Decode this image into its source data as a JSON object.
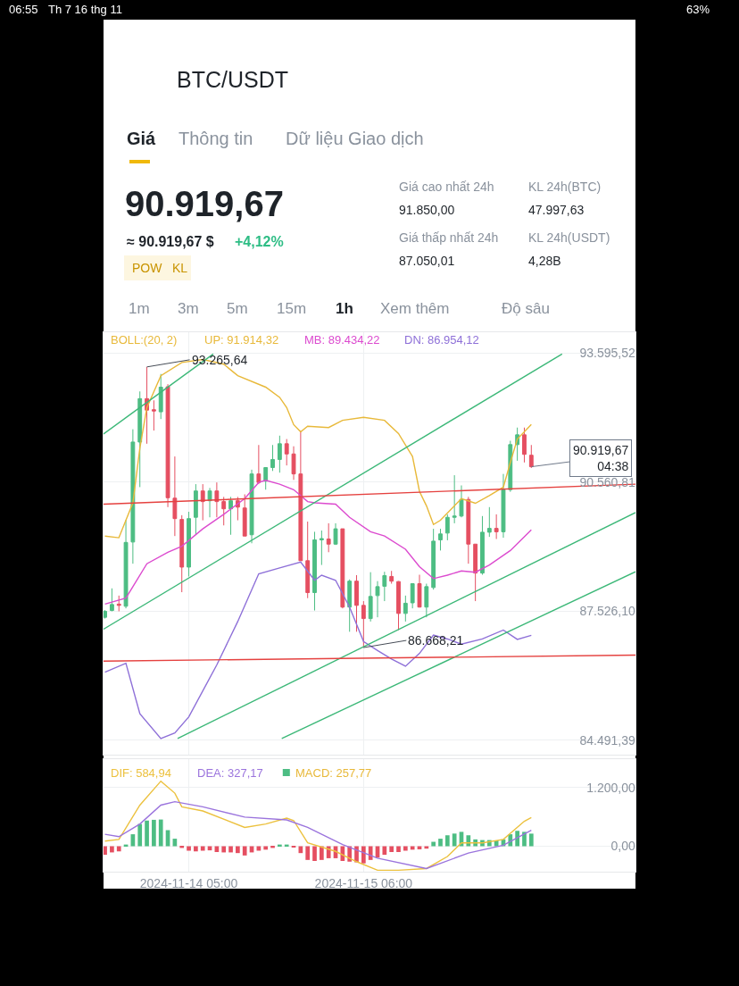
{
  "chart_data": [
    {
      "type": "candlestick",
      "title": "BTC/USDT",
      "legend_title": "BOLL:(20, 2)",
      "annotations": [
        "Giá",
        "Thông tin",
        "Dữ liệu Giao dịch",
        "90.919,67",
        "≈ 90.919,67 $",
        "+4,12%",
        "POW",
        "KL",
        "Giá cao nhất 24h",
        "91.850,00",
        "Giá thấp nhất 24h",
        "87.050,01",
        "KL 24h(BTC)",
        "47.997,63",
        "KL 24h(USDT)",
        "4,28B",
        "1m",
        "3m",
        "5m",
        "15m",
        "1h",
        "Xem thêm",
        "Độ sâu",
        "06:55",
        "Th 7 16 thg 11",
        "63%",
        {
          "text": "93.265,64",
          "x": "2024-11-13T23:00",
          "y": 93265.64
        },
        {
          "text": "86.668,21",
          "x": "2024-11-15T06:00",
          "y": 86668.21
        },
        {
          "text": "90.919,67\n04:38",
          "x": "2024-11-16T06:00",
          "y": 90919.67
        }
      ],
      "x": [
        "2024-11-13T17:00",
        "2024-11-13T18:00",
        "2024-11-13T19:00",
        "2024-11-13T20:00",
        "2024-11-13T21:00",
        "2024-11-13T22:00",
        "2024-11-13T23:00",
        "2024-11-14T00:00",
        "2024-11-14T01:00",
        "2024-11-14T02:00",
        "2024-11-14T03:00",
        "2024-11-14T04:00",
        "2024-11-14T05:00",
        "2024-11-14T06:00",
        "2024-11-14T07:00",
        "2024-11-14T08:00",
        "2024-11-14T09:00",
        "2024-11-14T10:00",
        "2024-11-14T11:00",
        "2024-11-14T12:00",
        "2024-11-14T13:00",
        "2024-11-14T14:00",
        "2024-11-14T15:00",
        "2024-11-14T16:00",
        "2024-11-14T17:00",
        "2024-11-14T18:00",
        "2024-11-14T19:00",
        "2024-11-14T20:00",
        "2024-11-14T21:00",
        "2024-11-14T22:00",
        "2024-11-14T23:00",
        "2024-11-15T00:00",
        "2024-11-15T01:00",
        "2024-11-15T02:00",
        "2024-11-15T03:00",
        "2024-11-15T04:00",
        "2024-11-15T05:00",
        "2024-11-15T06:00",
        "2024-11-15T07:00",
        "2024-11-15T08:00",
        "2024-11-15T09:00",
        "2024-11-15T10:00",
        "2024-11-15T11:00",
        "2024-11-15T12:00",
        "2024-11-15T13:00",
        "2024-11-15T14:00",
        "2024-11-15T15:00",
        "2024-11-15T16:00",
        "2024-11-15T17:00",
        "2024-11-15T18:00",
        "2024-11-15T19:00",
        "2024-11-15T20:00",
        "2024-11-15T21:00",
        "2024-11-15T22:00",
        "2024-11-15T23:00",
        "2024-11-16T00:00",
        "2024-11-16T01:00",
        "2024-11-16T02:00",
        "2024-11-16T03:00",
        "2024-11-16T04:00",
        "2024-11-16T05:00",
        "2024-11-16T06:00"
      ],
      "ohlc": [
        [
          87380,
          87550,
          87350,
          87520
        ],
        [
          87540,
          88060,
          87520,
          87680
        ],
        [
          87690,
          87890,
          87520,
          87660
        ],
        [
          87640,
          89670,
          87590,
          89140
        ],
        [
          89150,
          91800,
          88640,
          91500
        ],
        [
          91500,
          92690,
          90440,
          92520
        ],
        [
          92520,
          93265.64,
          91460,
          92250
        ],
        [
          92260,
          92480,
          91770,
          92230
        ],
        [
          92210,
          93100,
          92040,
          92790
        ],
        [
          92800,
          92860,
          89970,
          90190
        ],
        [
          90180,
          91160,
          89290,
          89700
        ],
        [
          89680,
          89780,
          87970,
          88560
        ],
        [
          88560,
          89860,
          88340,
          89700
        ],
        [
          89730,
          90510,
          89320,
          90350
        ],
        [
          90350,
          90510,
          89660,
          90100
        ],
        [
          90120,
          90420,
          89730,
          90350
        ],
        [
          90350,
          90550,
          89730,
          90100
        ],
        [
          90100,
          90210,
          89540,
          89930
        ],
        [
          89930,
          90210,
          89320,
          90120
        ],
        [
          90120,
          90210,
          89660,
          89970
        ],
        [
          89950,
          90270,
          89290,
          89290
        ],
        [
          89320,
          90850,
          89120,
          90750
        ],
        [
          90750,
          91430,
          90510,
          90550
        ],
        [
          90580,
          90900,
          90380,
          90900
        ],
        [
          90900,
          91430,
          90820,
          91090
        ],
        [
          91090,
          91650,
          90780,
          91460
        ],
        [
          91460,
          91570,
          90950,
          91220
        ],
        [
          91220,
          91400,
          90610,
          90750
        ],
        [
          90750,
          91770,
          88710,
          88710
        ],
        [
          88710,
          89630,
          87830,
          87960
        ],
        [
          87960,
          89390,
          87540,
          89200
        ],
        [
          89200,
          89420,
          88610,
          89230
        ],
        [
          89220,
          89590,
          88910,
          89100
        ],
        [
          89100,
          89590,
          89080,
          89460
        ],
        [
          89460,
          89460,
          87590,
          87620
        ],
        [
          87620,
          88270,
          87040,
          88230
        ],
        [
          88230,
          88370,
          87040,
          87660
        ],
        [
          87660,
          87760,
          86668.21,
          87350
        ],
        [
          87350,
          88440,
          87280,
          87870
        ],
        [
          87890,
          88230,
          87380,
          88100
        ],
        [
          88110,
          88450,
          87760,
          88360
        ],
        [
          88340,
          88470,
          88170,
          88230
        ],
        [
          88220,
          88230,
          87080,
          87470
        ],
        [
          87470,
          87890,
          87280,
          87710
        ],
        [
          87720,
          88170,
          87590,
          88170
        ],
        [
          88170,
          88380,
          87610,
          87620
        ],
        [
          87620,
          88170,
          87380,
          88100
        ],
        [
          88080,
          89460,
          88030,
          89170
        ],
        [
          89200,
          89460,
          88950,
          89340
        ],
        [
          89360,
          89800,
          89190,
          89730
        ],
        [
          89730,
          90720,
          89590,
          89760
        ],
        [
          89760,
          90480,
          89730,
          90150
        ],
        [
          90150,
          90210,
          88640,
          89100
        ],
        [
          89100,
          89100,
          87760,
          88420
        ],
        [
          88420,
          89760,
          88380,
          89380
        ],
        [
          89380,
          89970,
          89270,
          89470
        ],
        [
          89470,
          89800,
          89220,
          89390
        ],
        [
          89390,
          90750,
          89250,
          90380
        ],
        [
          90380,
          91530,
          90330,
          91440
        ],
        [
          91440,
          91840,
          91060,
          91670
        ],
        [
          91670,
          91840,
          91020,
          91210
        ],
        [
          91190,
          91430,
          90890,
          90919.67
        ]
      ],
      "colors": [
        "#4dbd83",
        "#4dbd83",
        "#e54f61",
        "#4dbd83",
        "#4dbd83",
        "#4dbd83",
        "#e54f61",
        "#e54f61",
        "#4dbd83",
        "#e54f61",
        "#e54f61",
        "#e54f61",
        "#4dbd83",
        "#4dbd83",
        "#e54f61",
        "#4dbd83",
        "#e54f61",
        "#e54f61",
        "#4dbd83",
        "#e54f61",
        "#e54f61",
        "#4dbd83",
        "#e54f61",
        "#4dbd83",
        "#4dbd83",
        "#4dbd83",
        "#e54f61",
        "#e54f61",
        "#e54f61",
        "#e54f61",
        "#4dbd83",
        "#4dbd83",
        "#e54f61",
        "#4dbd83",
        "#e54f61",
        "#4dbd83",
        "#e54f61",
        "#e54f61",
        "#4dbd83",
        "#4dbd83",
        "#4dbd83",
        "#e54f61",
        "#e54f61",
        "#4dbd83",
        "#4dbd83",
        "#e54f61",
        "#4dbd83",
        "#4dbd83",
        "#4dbd83",
        "#4dbd83",
        "#4dbd83",
        "#4dbd83",
        "#e54f61",
        "#e54f61",
        "#4dbd83",
        "#4dbd83",
        "#e54f61",
        "#4dbd83",
        "#4dbd83",
        "#4dbd83",
        "#e54f61",
        "#e54f61"
      ],
      "series": [
        {
          "name": "UP: 91.914,32",
          "type": "line",
          "color": "#e8b93a",
          "x": [
            "2024-11-13T17:00",
            "2024-11-13T19:00",
            "2024-11-13T21:00",
            "2024-11-13T22:00",
            "2024-11-13T23:00",
            "2024-11-14T01:00",
            "2024-11-14T04:00",
            "2024-11-14T07:00",
            "2024-11-14T10:00",
            "2024-11-14T12:00",
            "2024-11-14T16:00",
            "2024-11-14T18:00",
            "2024-11-14T19:00",
            "2024-11-14T20:00",
            "2024-11-14T21:00",
            "2024-11-14T22:00",
            "2024-11-15T01:00",
            "2024-11-15T03:00",
            "2024-11-15T06:00",
            "2024-11-15T09:00",
            "2024-11-15T11:00",
            "2024-11-15T13:00",
            "2024-11-15T14:00",
            "2024-11-15T15:00",
            "2024-11-15T16:00",
            "2024-11-15T17:00",
            "2024-11-15T20:00",
            "2024-11-15T22:00",
            "2024-11-16T00:00",
            "2024-11-16T02:00",
            "2024-11-16T03:00",
            "2024-11-16T04:00",
            "2024-11-16T05:00",
            "2024-11-16T06:00"
          ],
          "values": [
            89290,
            89250,
            90070,
            91360,
            92310,
            93060,
            93370,
            93440,
            93330,
            93060,
            92790,
            92550,
            92310,
            91910,
            91740,
            91870,
            91840,
            92010,
            92080,
            92010,
            91700,
            91160,
            90340,
            90000,
            89560,
            89660,
            90170,
            90060,
            90240,
            90440,
            91020,
            91570,
            91740,
            91914.32
          ]
        },
        {
          "name": "MB: 89.434,22",
          "type": "line",
          "color": "#dc4bcf",
          "x": [
            "2024-11-13T17:00",
            "2024-11-13T20:00",
            "2024-11-13T21:00",
            "2024-11-13T23:00",
            "2024-11-14T02:00",
            "2024-11-14T04:00",
            "2024-11-14T07:00",
            "2024-11-14T10:00",
            "2024-11-14T13:00",
            "2024-11-14T15:00",
            "2024-11-14T16:00",
            "2024-11-14T18:00",
            "2024-11-14T20:00",
            "2024-11-14T22:00",
            "2024-11-14T23:00",
            "2024-11-15T02:00",
            "2024-11-15T04:00",
            "2024-11-15T07:00",
            "2024-11-15T09:00",
            "2024-11-15T12:00",
            "2024-11-15T14:00",
            "2024-11-15T16:00",
            "2024-11-15T18:00",
            "2024-11-15T20:00",
            "2024-11-15T22:00",
            "2024-11-16T00:00",
            "2024-11-16T03:00",
            "2024-11-16T06:00"
          ],
          "values": [
            87690,
            87830,
            88100,
            88640,
            88910,
            89050,
            89460,
            89800,
            90170,
            90550,
            90600,
            90510,
            90380,
            90100,
            90070,
            90040,
            89730,
            89390,
            89290,
            88980,
            88570,
            88290,
            88370,
            88470,
            88440,
            88610,
            88950,
            89434.22
          ]
        },
        {
          "name": "DN: 86.954,12",
          "type": "line",
          "color": "#8e70d8",
          "x": [
            "2024-11-13T17:00",
            "2024-11-13T20:00",
            "2024-11-13T22:00",
            "2024-11-14T01:00",
            "2024-11-14T03:00",
            "2024-11-14T05:00",
            "2024-11-14T09:00",
            "2024-11-14T12:00",
            "2024-11-14T15:00",
            "2024-11-14T18:00",
            "2024-11-14T21:00",
            "2024-11-14T23:00",
            "2024-11-15T00:00",
            "2024-11-15T02:00",
            "2024-11-15T04:00",
            "2024-11-15T06:00",
            "2024-11-15T08:00",
            "2024-11-15T10:00",
            "2024-11-15T12:00",
            "2024-11-15T14:00",
            "2024-11-15T16:00",
            "2024-11-15T18:00",
            "2024-11-15T20:00",
            "2024-11-15T23:00",
            "2024-11-16T02:00",
            "2024-11-16T04:00",
            "2024-11-16T06:00"
          ],
          "values": [
            86090,
            86300,
            85110,
            84530,
            84660,
            85040,
            86260,
            87280,
            88400,
            88540,
            88680,
            88250,
            88370,
            88250,
            87620,
            86810,
            86600,
            86400,
            86230,
            86530,
            86960,
            86870,
            86750,
            86870,
            87080,
            86860,
            86954.12
          ]
        },
        {
          "type": "line",
          "color": "#3cb878",
          "x": [
            "2024-11-13T16:48",
            "2024-11-16T10:24"
          ],
          "values": [
            87100,
            93570
          ]
        },
        {
          "type": "line",
          "color": "#3cb878",
          "x": [
            "2024-11-13T16:48",
            "2024-11-14T08:30"
          ],
          "values": [
            91690,
            93570
          ]
        },
        {
          "type": "line",
          "color": "#3cb878",
          "x": [
            "2024-11-14T03:24",
            "2024-11-16T20:54"
          ],
          "values": [
            84530,
            89840
          ]
        },
        {
          "type": "line",
          "color": "#3cb878",
          "x": [
            "2024-11-14T18:18",
            "2024-11-16T20:54"
          ],
          "values": [
            84530,
            88450
          ]
        },
        {
          "type": "line",
          "color": "#e5413f",
          "x": [
            "2024-11-13T16:48",
            "2024-11-16T20:54"
          ],
          "values": [
            90040,
            90510
          ]
        },
        {
          "type": "line",
          "color": "#e5413f",
          "x": [
            "2024-11-13T16:48",
            "2024-11-16T20:54"
          ],
          "values": [
            86350,
            86490
          ]
        }
      ],
      "xlim": [
        "2024-11-13T16:48",
        "2024-11-16T20:54"
      ],
      "xticks": [
        {
          "value": "2024-11-14T05:00",
          "label": null
        },
        {
          "value": "2024-11-15T06:00",
          "label": null
        }
      ],
      "ylim": [
        84150,
        94081
      ],
      "yticks": [
        {
          "value": 93595.52,
          "label": "93.595,52"
        },
        {
          "value": 90560.81,
          "label": "90.560,81"
        },
        {
          "value": 87526.1,
          "label": "87.526,10"
        },
        {
          "value": 84491.39,
          "label": "84.491,39"
        }
      ],
      "tick_labels": "y",
      "grid": true
    },
    {
      "type": "bar",
      "x": [
        "2024-11-13T17:00",
        "2024-11-13T18:00",
        "2024-11-13T19:00",
        "2024-11-13T20:00",
        "2024-11-13T21:00",
        "2024-11-13T22:00",
        "2024-11-13T23:00",
        "2024-11-14T00:00",
        "2024-11-14T01:00",
        "2024-11-14T02:00",
        "2024-11-14T03:00",
        "2024-11-14T04:00",
        "2024-11-14T05:00",
        "2024-11-14T06:00",
        "2024-11-14T07:00",
        "2024-11-14T08:00",
        "2024-11-14T09:00",
        "2024-11-14T10:00",
        "2024-11-14T11:00",
        "2024-11-14T12:00",
        "2024-11-14T13:00",
        "2024-11-14T14:00",
        "2024-11-14T15:00",
        "2024-11-14T16:00",
        "2024-11-14T17:00",
        "2024-11-14T18:00",
        "2024-11-14T19:00",
        "2024-11-14T20:00",
        "2024-11-14T21:00",
        "2024-11-14T22:00",
        "2024-11-14T23:00",
        "2024-11-15T00:00",
        "2024-11-15T01:00",
        "2024-11-15T02:00",
        "2024-11-15T03:00",
        "2024-11-15T04:00",
        "2024-11-15T05:00",
        "2024-11-15T06:00",
        "2024-11-15T07:00",
        "2024-11-15T08:00",
        "2024-11-15T09:00",
        "2024-11-15T10:00",
        "2024-11-15T11:00",
        "2024-11-15T12:00",
        "2024-11-15T13:00",
        "2024-11-15T14:00",
        "2024-11-15T15:00",
        "2024-11-15T16:00",
        "2024-11-15T17:00",
        "2024-11-15T18:00",
        "2024-11-15T19:00",
        "2024-11-15T20:00",
        "2024-11-15T21:00",
        "2024-11-15T22:00",
        "2024-11-15T23:00",
        "2024-11-16T00:00",
        "2024-11-16T01:00",
        "2024-11-16T02:00",
        "2024-11-16T03:00",
        "2024-11-16T04:00",
        "2024-11-16T05:00",
        "2024-11-16T06:00"
      ],
      "series": [
        {
          "name": "DIF: 584,94",
          "type": "line",
          "color": "#ecc13e",
          "x": [
            "2024-11-13T17:00",
            "2024-11-13T19:00",
            "2024-11-13T22:00",
            "2024-11-14T01:00",
            "2024-11-14T03:00",
            "2024-11-14T04:00",
            "2024-11-14T07:00",
            "2024-11-14T13:00",
            "2024-11-14T16:00",
            "2024-11-14T19:00",
            "2024-11-14T20:00",
            "2024-11-14T22:00",
            "2024-11-15T02:00",
            "2024-11-15T05:00",
            "2024-11-15T08:00",
            "2024-11-15T11:00",
            "2024-11-15T15:00",
            "2024-11-15T18:00",
            "2024-11-15T20:00",
            "2024-11-15T23:00",
            "2024-11-16T02:00",
            "2024-11-16T05:00",
            "2024-11-16T06:00"
          ],
          "values": [
            105,
            140,
            840,
            1330,
            1085,
            805,
            721,
            385,
            455,
            574,
            525,
            70,
            -105,
            -315,
            -490,
            -490,
            -455,
            -210,
            70,
            70,
            140,
            511,
            584.94
          ]
        },
        {
          "name": "DEA: 327,17",
          "type": "line",
          "color": "#9b74dd",
          "x": [
            "2024-11-13T17:00",
            "2024-11-13T19:00",
            "2024-11-13T22:00",
            "2024-11-14T01:00",
            "2024-11-14T03:00",
            "2024-11-14T07:00",
            "2024-11-14T13:00",
            "2024-11-14T19:00",
            "2024-11-14T22:00",
            "2024-11-15T03:00",
            "2024-11-15T08:00",
            "2024-11-15T15:00",
            "2024-11-15T21:00",
            "2024-11-16T02:00",
            "2024-11-16T06:00"
          ],
          "values": [
            245,
            196,
            455,
            840,
            910,
            805,
            595,
            539,
            385,
            35,
            -245,
            -455,
            -140,
            21,
            327.17
          ]
        },
        {
          "name": "MACD: 257,77",
          "type": "bar",
          "colors": [
            "#e54f61",
            "#e54f61",
            "#e54f61",
            "#4dbd83",
            "#4dbd83",
            "#4dbd83",
            "#4dbd83",
            "#4dbd83",
            "#4dbd83",
            "#4dbd83",
            "#4dbd83",
            "#e54f61",
            "#e54f61",
            "#e54f61",
            "#e54f61",
            "#e54f61",
            "#e54f61",
            "#e54f61",
            "#e54f61",
            "#e54f61",
            "#e54f61",
            "#e54f61",
            "#e54f61",
            "#e54f61",
            "#e54f61",
            "#4dbd83",
            "#4dbd83",
            "#e54f61",
            "#e54f61",
            "#e54f61",
            "#e54f61",
            "#e54f61",
            "#e54f61",
            "#e54f61",
            "#e54f61",
            "#e54f61",
            "#e54f61",
            "#e54f61",
            "#e54f61",
            "#e54f61",
            "#e54f61",
            "#e54f61",
            "#e54f61",
            "#e54f61",
            "#e54f61",
            "#e54f61",
            "#e54f61",
            "#4dbd83",
            "#4dbd83",
            "#4dbd83",
            "#4dbd83",
            "#4dbd83",
            "#4dbd83",
            "#4dbd83",
            "#4dbd83",
            "#4dbd83",
            "#4dbd83",
            "#4dbd83",
            "#4dbd83",
            "#4dbd83",
            "#4dbd83",
            "#4dbd83"
          ],
          "values": [
            -175,
            -126,
            -105,
            35,
            245,
            455,
            525,
            540,
            546,
            329,
            154,
            -35,
            -91,
            -105,
            -91,
            -84,
            -119,
            -126,
            -126,
            -140,
            -189,
            -126,
            -91,
            -70,
            -35,
            35,
            35,
            -21,
            -140,
            -280,
            -301,
            -280,
            -245,
            -245,
            -301,
            -315,
            -329,
            -350,
            -280,
            -231,
            -175,
            -119,
            -119,
            -91,
            -70,
            -63,
            -49,
            91,
            154,
            224,
            259,
            294,
            224,
            140,
            126,
            126,
            119,
            140,
            245,
            315,
            294,
            257.77
          ]
        }
      ],
      "xlim": [
        "2024-11-13T16:48",
        "2024-11-16T20:54"
      ],
      "xticks": [
        {
          "value": "2024-11-14T05:00",
          "label": "2024-11-14 05:00"
        },
        {
          "value": "2024-11-15T06:00",
          "label": "2024-11-15 06:00"
        }
      ],
      "ylim": [
        -520,
        1780
      ],
      "yticks": [
        {
          "value": 1200,
          "label": "1.200,00"
        },
        {
          "value": 0,
          "label": "0,00"
        }
      ],
      "grid": true
    }
  ]
}
